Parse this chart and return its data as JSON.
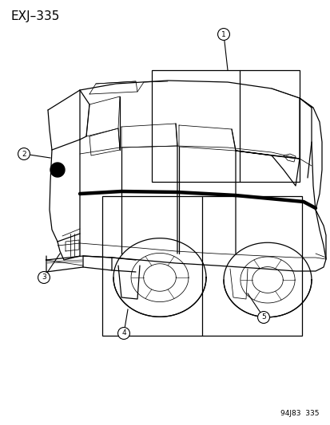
{
  "title": "EXJ–335",
  "footnote": "94J83  335",
  "bg": "#ffffff",
  "fg": "#000000",
  "lw_main": 0.9,
  "lw_thin": 0.55,
  "lw_thick": 3.2,
  "callout_r": 0.018,
  "callout_fs": 6.5,
  "title_fs": 11,
  "footnote_fs": 6.5
}
